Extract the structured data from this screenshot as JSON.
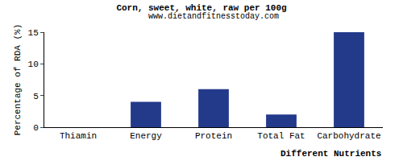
{
  "chart_data": {
    "type": "bar",
    "title": "Corn, sweet, white, raw per 100g",
    "subtitle": "www.dietandfitnesstoday.com",
    "x_label": "Different Nutrients",
    "y_label": "Percentage of RDA (%)",
    "categories": [
      "Thiamin",
      "Energy",
      "Protein",
      "Total Fat",
      "Carbohydrate"
    ],
    "values": [
      0,
      4,
      6,
      2,
      15
    ],
    "color": "#233a8b",
    "ylim": [
      0,
      15
    ],
    "yticks": [
      0,
      5,
      10,
      15
    ],
    "grid": false
  }
}
